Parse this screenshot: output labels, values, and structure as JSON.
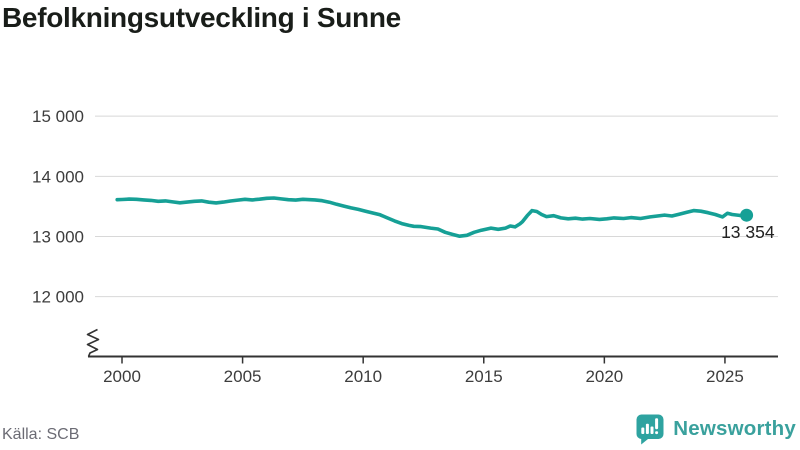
{
  "header": {
    "title": "Befolkningsutveckling i Sunne"
  },
  "footer": {
    "source": "Källa: SCB",
    "brand": "Newsworthy",
    "logo_icon": "bar-chart-exclamation-speech-bubble"
  },
  "colors": {
    "line": "#16a096",
    "grid": "#d8d8d8",
    "axis": "#333333",
    "tick_text": "#3d3d3d",
    "title_text": "#191d19",
    "source_text": "#6b6b74",
    "label_text": "#222222",
    "brand_teal": "#3aa19d",
    "bubble_teal": "#2ea3a0"
  },
  "chart_data": {
    "type": "line",
    "title": "Befolkningsutveckling i Sunne",
    "xlabel": "",
    "ylabel": "",
    "grid": "horizontal",
    "legend": "none",
    "y_axis_break": true,
    "xlim": [
      1998.59,
      2027.2
    ],
    "ylim": [
      10997,
      15269
    ],
    "x_axis": {
      "ticks": [
        {
          "label": "2000",
          "year": 2000
        },
        {
          "label": "2005",
          "year": 2005
        },
        {
          "label": "2010",
          "year": 2010
        },
        {
          "label": "2015",
          "year": 2015
        },
        {
          "label": "2020",
          "year": 2020
        },
        {
          "label": "2025",
          "year": 2025
        }
      ]
    },
    "y_axis": {
      "ticks": [
        {
          "label": "15 000",
          "value": 15000
        },
        {
          "label": "14 000",
          "value": 14000
        },
        {
          "label": "13 000",
          "value": 13000
        },
        {
          "label": "12 000",
          "value": 12000
        }
      ]
    },
    "last_point_label": "13 354",
    "series": [
      {
        "name": "Befolkning i Sunne",
        "points": [
          [
            1999.8,
            13612
          ],
          [
            2000.0,
            13615
          ],
          [
            2000.3,
            13622
          ],
          [
            2000.6,
            13618
          ],
          [
            2000.9,
            13608
          ],
          [
            2001.2,
            13600
          ],
          [
            2001.5,
            13585
          ],
          [
            2001.8,
            13592
          ],
          [
            2002.1,
            13575
          ],
          [
            2002.4,
            13560
          ],
          [
            2002.7,
            13572
          ],
          [
            2003.0,
            13585
          ],
          [
            2003.3,
            13592
          ],
          [
            2003.6,
            13570
          ],
          [
            2003.9,
            13558
          ],
          [
            2004.2,
            13572
          ],
          [
            2004.5,
            13590
          ],
          [
            2004.8,
            13605
          ],
          [
            2005.1,
            13618
          ],
          [
            2005.4,
            13608
          ],
          [
            2005.7,
            13620
          ],
          [
            2006.0,
            13635
          ],
          [
            2006.3,
            13640
          ],
          [
            2006.6,
            13625
          ],
          [
            2006.9,
            13612
          ],
          [
            2007.2,
            13605
          ],
          [
            2007.5,
            13618
          ],
          [
            2007.8,
            13612
          ],
          [
            2008.0,
            13608
          ],
          [
            2008.3,
            13595
          ],
          [
            2008.6,
            13570
          ],
          [
            2008.9,
            13535
          ],
          [
            2009.2,
            13505
          ],
          [
            2009.5,
            13475
          ],
          [
            2009.8,
            13450
          ],
          [
            2010.1,
            13420
          ],
          [
            2010.4,
            13390
          ],
          [
            2010.7,
            13360
          ],
          [
            2011.0,
            13310
          ],
          [
            2011.3,
            13260
          ],
          [
            2011.6,
            13215
          ],
          [
            2011.9,
            13185
          ],
          [
            2012.1,
            13170
          ],
          [
            2012.4,
            13165
          ],
          [
            2012.8,
            13140
          ],
          [
            2013.1,
            13125
          ],
          [
            2013.4,
            13070
          ],
          [
            2013.7,
            13035
          ],
          [
            2014.0,
            13005
          ],
          [
            2014.3,
            13020
          ],
          [
            2014.6,
            13070
          ],
          [
            2014.9,
            13105
          ],
          [
            2015.3,
            13140
          ],
          [
            2015.6,
            13120
          ],
          [
            2015.9,
            13140
          ],
          [
            2016.1,
            13175
          ],
          [
            2016.3,
            13160
          ],
          [
            2016.5,
            13210
          ],
          [
            2016.6,
            13245
          ],
          [
            2016.8,
            13345
          ],
          [
            2017.0,
            13430
          ],
          [
            2017.2,
            13415
          ],
          [
            2017.4,
            13365
          ],
          [
            2017.6,
            13330
          ],
          [
            2017.9,
            13345
          ],
          [
            2018.2,
            13310
          ],
          [
            2018.5,
            13295
          ],
          [
            2018.8,
            13305
          ],
          [
            2019.1,
            13290
          ],
          [
            2019.4,
            13300
          ],
          [
            2019.8,
            13285
          ],
          [
            2020.1,
            13295
          ],
          [
            2020.4,
            13310
          ],
          [
            2020.8,
            13300
          ],
          [
            2021.1,
            13315
          ],
          [
            2021.5,
            13300
          ],
          [
            2021.9,
            13325
          ],
          [
            2022.2,
            13340
          ],
          [
            2022.5,
            13355
          ],
          [
            2022.8,
            13340
          ],
          [
            2023.1,
            13370
          ],
          [
            2023.4,
            13400
          ],
          [
            2023.7,
            13430
          ],
          [
            2024.0,
            13420
          ],
          [
            2024.3,
            13395
          ],
          [
            2024.6,
            13365
          ],
          [
            2024.9,
            13325
          ],
          [
            2025.1,
            13385
          ],
          [
            2025.3,
            13365
          ],
          [
            2025.6,
            13350
          ],
          [
            2025.9,
            13354
          ]
        ]
      }
    ]
  }
}
